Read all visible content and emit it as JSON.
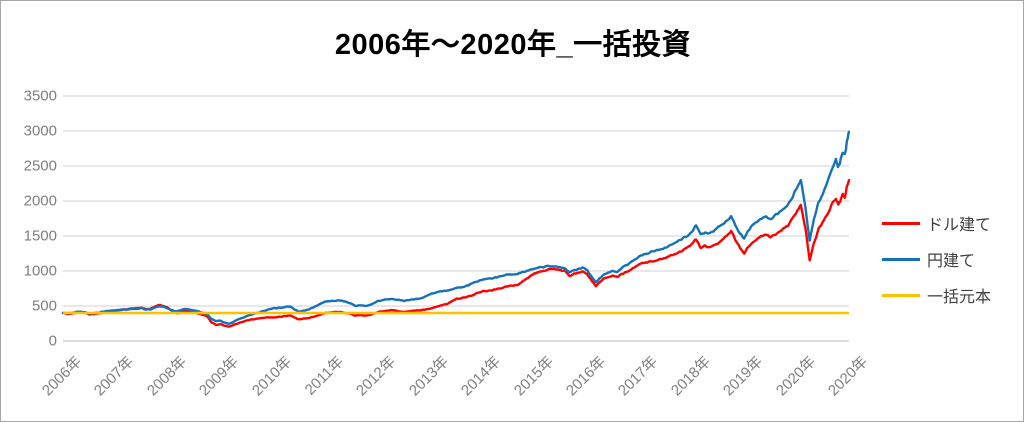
{
  "title": "2006年～2020年_一括投資",
  "legend": {
    "position": "right",
    "items": [
      {
        "label": "ドル建て",
        "color": "#ff0000"
      },
      {
        "label": "円建て",
        "color": "#1572b8"
      },
      {
        "label": "一括元本",
        "color": "#ffc000"
      }
    ]
  },
  "colors": {
    "grid": "#d9d9d9",
    "axis": "#c6c6c6",
    "tick_text": "#7f7f7f",
    "border": "#a6a6a6"
  },
  "chart_data": {
    "type": "line",
    "title": "2006年～2020年_一括投資",
    "xlabel": "",
    "ylabel": "",
    "grid": true,
    "legend_position": "right",
    "ylim": [
      0,
      3500
    ],
    "y_ticks": [
      0,
      500,
      1000,
      1500,
      2000,
      2500,
      3000,
      3500
    ],
    "x_tick_labels": [
      "2006年",
      "2007年",
      "2008年",
      "2009年",
      "2010年",
      "2011年",
      "2012年",
      "2013年",
      "2014年",
      "2015年",
      "2016年",
      "2017年",
      "2018年",
      "2019年",
      "2020年",
      "2020年"
    ],
    "x_range_years": [
      2006,
      2021
    ],
    "series_names": [
      "ドル建て",
      "円建て",
      "一括元本"
    ],
    "principal_value": 400,
    "points_format": [
      "year",
      "dollar_value",
      "yen_value"
    ],
    "points": [
      [
        2006.0,
        400,
        402
      ],
      [
        2006.08,
        385,
        398
      ],
      [
        2006.17,
        390,
        400
      ],
      [
        2006.25,
        408,
        415
      ],
      [
        2006.33,
        415,
        420
      ],
      [
        2006.42,
        400,
        410
      ],
      [
        2006.5,
        380,
        395
      ],
      [
        2006.58,
        385,
        398
      ],
      [
        2006.67,
        392,
        405
      ],
      [
        2006.75,
        405,
        418
      ],
      [
        2006.83,
        420,
        430
      ],
      [
        2006.92,
        428,
        436
      ],
      [
        2007.0,
        435,
        440
      ],
      [
        2007.08,
        442,
        444
      ],
      [
        2007.17,
        450,
        448
      ],
      [
        2007.25,
        458,
        452
      ],
      [
        2007.33,
        465,
        458
      ],
      [
        2007.42,
        470,
        462
      ],
      [
        2007.5,
        475,
        465
      ],
      [
        2007.58,
        455,
        448
      ],
      [
        2007.67,
        462,
        452
      ],
      [
        2007.75,
        490,
        475
      ],
      [
        2007.83,
        515,
        495
      ],
      [
        2007.92,
        500,
        488
      ],
      [
        2008.0,
        475,
        465
      ],
      [
        2008.08,
        430,
        440
      ],
      [
        2008.17,
        395,
        420
      ],
      [
        2008.25,
        415,
        442
      ],
      [
        2008.33,
        430,
        460
      ],
      [
        2008.42,
        420,
        450
      ],
      [
        2008.5,
        408,
        438
      ],
      [
        2008.58,
        390,
        420
      ],
      [
        2008.67,
        375,
        405
      ],
      [
        2008.75,
        358,
        390
      ],
      [
        2008.83,
        270,
        315
      ],
      [
        2008.92,
        230,
        285
      ],
      [
        2009.0,
        242,
        292
      ],
      [
        2009.08,
        218,
        262
      ],
      [
        2009.17,
        205,
        245
      ],
      [
        2009.25,
        228,
        272
      ],
      [
        2009.33,
        252,
        305
      ],
      [
        2009.42,
        272,
        330
      ],
      [
        2009.5,
        290,
        355
      ],
      [
        2009.58,
        305,
        375
      ],
      [
        2009.67,
        315,
        395
      ],
      [
        2009.75,
        322,
        410
      ],
      [
        2009.83,
        330,
        428
      ],
      [
        2009.92,
        338,
        448
      ],
      [
        2010.0,
        335,
        465
      ],
      [
        2010.08,
        340,
        470
      ],
      [
        2010.17,
        348,
        478
      ],
      [
        2010.25,
        360,
        488
      ],
      [
        2010.33,
        365,
        492
      ],
      [
        2010.42,
        335,
        450
      ],
      [
        2010.5,
        310,
        420
      ],
      [
        2010.58,
        318,
        432
      ],
      [
        2010.67,
        325,
        448
      ],
      [
        2010.75,
        340,
        470
      ],
      [
        2010.83,
        355,
        500
      ],
      [
        2010.92,
        380,
        532
      ],
      [
        2011.0,
        400,
        562
      ],
      [
        2011.08,
        405,
        568
      ],
      [
        2011.17,
        412,
        575
      ],
      [
        2011.25,
        415,
        580
      ],
      [
        2011.33,
        412,
        575
      ],
      [
        2011.42,
        398,
        552
      ],
      [
        2011.5,
        388,
        532
      ],
      [
        2011.58,
        360,
        500
      ],
      [
        2011.67,
        372,
        512
      ],
      [
        2011.75,
        362,
        502
      ],
      [
        2011.83,
        368,
        508
      ],
      [
        2011.92,
        388,
        535
      ],
      [
        2012.0,
        412,
        568
      ],
      [
        2012.08,
        425,
        582
      ],
      [
        2012.17,
        435,
        595
      ],
      [
        2012.25,
        440,
        600
      ],
      [
        2012.33,
        438,
        598
      ],
      [
        2012.42,
        425,
        585
      ],
      [
        2012.5,
        415,
        575
      ],
      [
        2012.58,
        422,
        582
      ],
      [
        2012.67,
        430,
        592
      ],
      [
        2012.75,
        435,
        598
      ],
      [
        2012.83,
        442,
        608
      ],
      [
        2012.92,
        450,
        635
      ],
      [
        2013.0,
        462,
        668
      ],
      [
        2013.08,
        482,
        685
      ],
      [
        2013.17,
        500,
        700
      ],
      [
        2013.25,
        515,
        712
      ],
      [
        2013.33,
        530,
        722
      ],
      [
        2013.42,
        565,
        738
      ],
      [
        2013.5,
        600,
        755
      ],
      [
        2013.58,
        610,
        768
      ],
      [
        2013.67,
        622,
        782
      ],
      [
        2013.75,
        640,
        805
      ],
      [
        2013.83,
        660,
        830
      ],
      [
        2013.92,
        685,
        855
      ],
      [
        2014.0,
        710,
        878
      ],
      [
        2014.08,
        715,
        885
      ],
      [
        2014.17,
        722,
        892
      ],
      [
        2014.25,
        735,
        905
      ],
      [
        2014.33,
        750,
        920
      ],
      [
        2014.42,
        768,
        940
      ],
      [
        2014.5,
        785,
        952
      ],
      [
        2014.58,
        792,
        955
      ],
      [
        2014.67,
        800,
        962
      ],
      [
        2014.75,
        840,
        980
      ],
      [
        2014.83,
        880,
        1000
      ],
      [
        2014.92,
        925,
        1015
      ],
      [
        2015.0,
        968,
        1030
      ],
      [
        2015.08,
        985,
        1048
      ],
      [
        2015.17,
        1000,
        1058
      ],
      [
        2015.25,
        1018,
        1068
      ],
      [
        2015.33,
        1030,
        1075
      ],
      [
        2015.42,
        1022,
        1068
      ],
      [
        2015.5,
        1012,
        1055
      ],
      [
        2015.58,
        1000,
        1040
      ],
      [
        2015.67,
        930,
        985
      ],
      [
        2015.75,
        958,
        1010
      ],
      [
        2015.83,
        975,
        1030
      ],
      [
        2015.92,
        990,
        1048
      ],
      [
        2016.0,
        958,
        1018
      ],
      [
        2016.08,
        870,
        930
      ],
      [
        2016.17,
        782,
        832
      ],
      [
        2016.25,
        845,
        900
      ],
      [
        2016.33,
        900,
        958
      ],
      [
        2016.42,
        920,
        982
      ],
      [
        2016.5,
        932,
        1000
      ],
      [
        2016.58,
        912,
        985
      ],
      [
        2016.67,
        958,
        1048
      ],
      [
        2016.75,
        985,
        1082
      ],
      [
        2016.83,
        1012,
        1118
      ],
      [
        2016.92,
        1055,
        1168
      ],
      [
        2017.0,
        1098,
        1215
      ],
      [
        2017.08,
        1115,
        1238
      ],
      [
        2017.17,
        1130,
        1258
      ],
      [
        2017.25,
        1140,
        1275
      ],
      [
        2017.33,
        1152,
        1292
      ],
      [
        2017.42,
        1170,
        1315
      ],
      [
        2017.5,
        1190,
        1338
      ],
      [
        2017.58,
        1215,
        1368
      ],
      [
        2017.67,
        1240,
        1400
      ],
      [
        2017.75,
        1268,
        1432
      ],
      [
        2017.83,
        1298,
        1468
      ],
      [
        2017.92,
        1340,
        1512
      ],
      [
        2018.0,
        1390,
        1558
      ],
      [
        2018.08,
        1450,
        1648
      ],
      [
        2018.17,
        1330,
        1518
      ],
      [
        2018.25,
        1358,
        1555
      ],
      [
        2018.33,
        1340,
        1538
      ],
      [
        2018.42,
        1368,
        1575
      ],
      [
        2018.5,
        1400,
        1618
      ],
      [
        2018.58,
        1448,
        1668
      ],
      [
        2018.67,
        1500,
        1720
      ],
      [
        2018.75,
        1568,
        1788
      ],
      [
        2018.83,
        1452,
        1662
      ],
      [
        2018.92,
        1330,
        1528
      ],
      [
        2019.0,
        1252,
        1468
      ],
      [
        2019.08,
        1352,
        1578
      ],
      [
        2019.17,
        1420,
        1658
      ],
      [
        2019.25,
        1462,
        1708
      ],
      [
        2019.33,
        1500,
        1748
      ],
      [
        2019.42,
        1528,
        1788
      ],
      [
        2019.5,
        1478,
        1728
      ],
      [
        2019.58,
        1520,
        1788
      ],
      [
        2019.67,
        1558,
        1838
      ],
      [
        2019.75,
        1600,
        1890
      ],
      [
        2019.83,
        1648,
        1948
      ],
      [
        2019.92,
        1748,
        2058
      ],
      [
        2020.0,
        1848,
        2178
      ],
      [
        2020.08,
        1948,
        2298
      ],
      [
        2020.17,
        1598,
        1898
      ],
      [
        2020.25,
        1148,
        1428
      ],
      [
        2020.33,
        1398,
        1748
      ],
      [
        2020.42,
        1598,
        1978
      ],
      [
        2020.5,
        1698,
        2098
      ],
      [
        2020.58,
        1798,
        2248
      ],
      [
        2020.67,
        1948,
        2448
      ],
      [
        2020.75,
        2048,
        2598
      ],
      [
        2020.79,
        1948,
        2478
      ],
      [
        2020.83,
        1998,
        2548
      ],
      [
        2020.88,
        2098,
        2698
      ],
      [
        2020.92,
        2048,
        2648
      ],
      [
        2020.96,
        2198,
        2848
      ],
      [
        2021.0,
        2298,
        2988
      ]
    ]
  }
}
